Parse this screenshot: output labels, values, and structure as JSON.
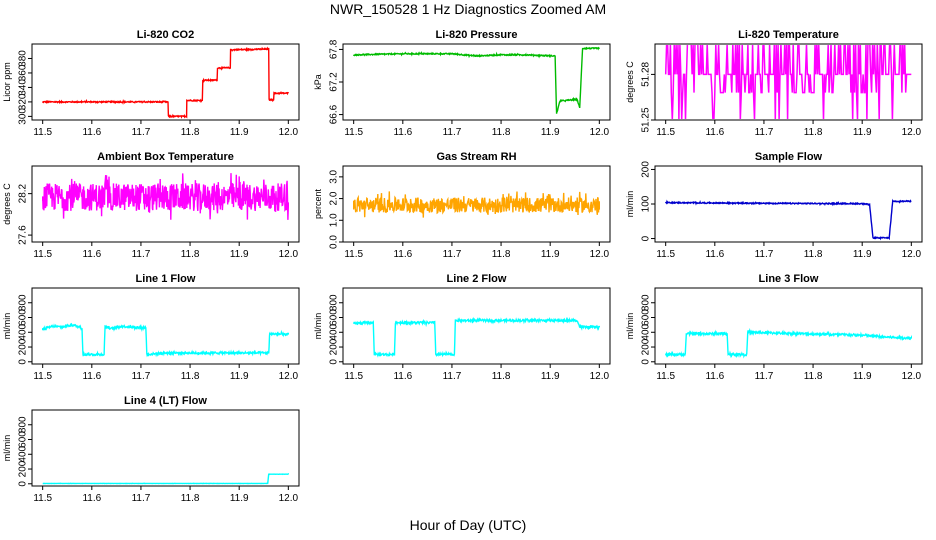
{
  "figure": {
    "title": "NWR_150528  1 Hz Diagnostics Zoomed AM",
    "xlabel": "Hour of Day (UTC)"
  },
  "chart_data": [
    {
      "type": "line",
      "title": "Li-820 CO2",
      "ylabel": "Licor ppm",
      "color": "#ff0000",
      "xlim": [
        11.5,
        12.0
      ],
      "ylim": [
        295,
        400
      ],
      "xticks": [
        "11.5",
        "11.6",
        "11.7",
        "11.8",
        "11.9",
        "12.0"
      ],
      "yticks": [
        300,
        320,
        340,
        360,
        380
      ],
      "noise": 0.8,
      "series": [
        {
          "x": [
            11.5,
            11.755,
            11.755,
            11.793,
            11.793,
            11.825,
            11.825,
            11.855,
            11.855,
            11.882,
            11.882,
            11.96,
            11.96,
            11.97,
            11.97,
            12.0
          ],
          "y": [
            320,
            320,
            300,
            300,
            322,
            322,
            350,
            350,
            367,
            367,
            392,
            393,
            323,
            323,
            332,
            332
          ]
        }
      ]
    },
    {
      "type": "line",
      "title": "Li-820 Pressure",
      "ylabel": "kPa",
      "color": "#00bb00",
      "xlim": [
        11.5,
        12.0
      ],
      "ylim": [
        66.5,
        67.9
      ],
      "xticks": [
        "11.5",
        "11.6",
        "11.7",
        "11.8",
        "11.9",
        "12.0"
      ],
      "yticks": [
        "66.6",
        "67.2",
        "67.8"
      ],
      "ytick_values": [
        66.6,
        67.2,
        67.8
      ],
      "noise": 0.01,
      "series": [
        {
          "x": [
            11.5,
            11.6,
            11.7,
            11.75,
            11.8,
            11.85,
            11.91,
            11.913,
            11.92,
            11.955,
            11.96,
            11.966,
            11.975,
            11.995,
            12.0
          ],
          "y": [
            67.7,
            67.72,
            67.72,
            67.68,
            67.7,
            67.7,
            67.68,
            66.62,
            66.85,
            66.88,
            66.72,
            67.82,
            67.82,
            67.82,
            67.82
          ]
        }
      ]
    },
    {
      "type": "line",
      "title": "Li-820 Temperature",
      "ylabel": "degrees C",
      "color": "#ff00ff",
      "xlim": [
        11.5,
        12.0
      ],
      "ylim": [
        51.25,
        51.3
      ],
      "xticks": [
        "11.5",
        "11.6",
        "11.7",
        "11.8",
        "11.9",
        "12.0"
      ],
      "yticks": [
        "51.25",
        "51.28"
      ],
      "ytick_values": [
        51.25,
        51.28
      ],
      "levels": [
        51.25,
        51.268,
        51.28,
        51.3
      ],
      "series": [
        {
          "x": [
            11.5,
            12.0
          ],
          "y": [
            51.28,
            51.28
          ]
        }
      ]
    },
    {
      "type": "line",
      "title": "Ambient Box Temperature",
      "ylabel": "degrees C",
      "color": "#ff00ff",
      "xlim": [
        11.5,
        12.0
      ],
      "ylim": [
        27.5,
        28.6
      ],
      "xticks": [
        "11.5",
        "11.6",
        "11.7",
        "11.8",
        "11.9",
        "12.0"
      ],
      "yticks": [
        "27.6",
        "28.2"
      ],
      "ytick_values": [
        27.6,
        28.2
      ],
      "noise": 0.2,
      "series": [
        {
          "x": [
            11.5,
            12.0
          ],
          "y": [
            28.15,
            28.15
          ]
        }
      ]
    },
    {
      "type": "line",
      "title": "Gas Stream RH",
      "ylabel": "percent",
      "color": "#ffa500",
      "xlim": [
        11.5,
        12.0
      ],
      "ylim": [
        0,
        3.5
      ],
      "xticks": [
        "11.5",
        "11.6",
        "11.7",
        "11.8",
        "11.9",
        "12.0"
      ],
      "yticks": [
        "0.0",
        "1.0",
        "2.0",
        "3.0"
      ],
      "ytick_values": [
        0,
        1,
        2,
        3
      ],
      "noise": 0.35,
      "series": [
        {
          "x": [
            11.5,
            12.0
          ],
          "y": [
            1.7,
            1.7
          ]
        }
      ]
    },
    {
      "type": "line",
      "title": "Sample Flow",
      "ylabel": "ml/min",
      "color": "#0000cc",
      "xlim": [
        11.5,
        12.0
      ],
      "ylim": [
        -10,
        210
      ],
      "xticks": [
        "11.5",
        "11.6",
        "11.7",
        "11.8",
        "11.9",
        "12.0"
      ],
      "yticks": [
        "0",
        "100",
        "200"
      ],
      "ytick_values": [
        0,
        100,
        200
      ],
      "noise": 1.5,
      "series": [
        {
          "x": [
            11.5,
            11.7,
            11.9,
            11.915,
            11.922,
            11.955,
            11.962,
            12.0
          ],
          "y": [
            104,
            102,
            101,
            98,
            2,
            2,
            108,
            108
          ]
        }
      ]
    },
    {
      "type": "line",
      "title": "Line 1 Flow",
      "ylabel": "ml/min",
      "color": "#00ffff",
      "xlim": [
        11.5,
        12.0
      ],
      "ylim": [
        -30,
        1000
      ],
      "xticks": [
        "11.5",
        "11.6",
        "11.7",
        "11.8",
        "11.9",
        "12.0"
      ],
      "yticks": [
        "0",
        "200",
        "400",
        "600",
        "800"
      ],
      "ytick_values": [
        0,
        200,
        400,
        600,
        800
      ],
      "noise": 15,
      "series": [
        {
          "x": [
            11.5,
            11.52,
            11.54,
            11.56,
            11.58,
            11.582,
            11.625,
            11.627,
            11.64,
            11.66,
            11.71,
            11.712,
            11.75,
            11.96,
            11.962,
            12.0
          ],
          "y": [
            440,
            480,
            470,
            500,
            460,
            100,
            100,
            480,
            450,
            480,
            460,
            100,
            120,
            120,
            380,
            370
          ]
        }
      ]
    },
    {
      "type": "line",
      "title": "Line 2 Flow",
      "ylabel": "ml/min",
      "color": "#00ffff",
      "xlim": [
        11.5,
        12.0
      ],
      "ylim": [
        -30,
        1000
      ],
      "xticks": [
        "11.5",
        "11.6",
        "11.7",
        "11.8",
        "11.9",
        "12.0"
      ],
      "yticks": [
        "0",
        "200",
        "400",
        "600",
        "800"
      ],
      "ytick_values": [
        0,
        200,
        400,
        600,
        800
      ],
      "noise": 15,
      "series": [
        {
          "x": [
            11.5,
            11.54,
            11.542,
            11.583,
            11.585,
            11.665,
            11.667,
            11.705,
            11.707,
            11.955,
            11.96,
            12.0
          ],
          "y": [
            520,
            530,
            100,
            100,
            530,
            530,
            100,
            100,
            560,
            560,
            470,
            470
          ]
        }
      ]
    },
    {
      "type": "line",
      "title": "Line 3 Flow",
      "ylabel": "ml/min",
      "color": "#00ffff",
      "xlim": [
        11.5,
        12.0
      ],
      "ylim": [
        -30,
        1000
      ],
      "xticks": [
        "11.5",
        "11.6",
        "11.7",
        "11.8",
        "11.9",
        "12.0"
      ],
      "yticks": [
        "0",
        "200",
        "400",
        "600",
        "800"
      ],
      "ytick_values": [
        0,
        200,
        400,
        600,
        800
      ],
      "noise": 15,
      "series": [
        {
          "x": [
            11.5,
            11.54,
            11.542,
            11.625,
            11.627,
            11.665,
            11.667,
            11.9,
            11.96,
            12.0
          ],
          "y": [
            100,
            100,
            380,
            380,
            100,
            100,
            400,
            360,
            330,
            320
          ]
        }
      ]
    },
    {
      "type": "line",
      "title": "Line 4 (LT) Flow",
      "ylabel": "ml/min",
      "color": "#00ffff",
      "xlim": [
        11.5,
        12.0
      ],
      "ylim": [
        -30,
        1000
      ],
      "xticks": [
        "11.5",
        "11.6",
        "11.7",
        "11.8",
        "11.9",
        "12.0"
      ],
      "yticks": [
        "0",
        "200",
        "400",
        "600",
        "800"
      ],
      "ytick_values": [
        0,
        200,
        400,
        600,
        800
      ],
      "noise": 1,
      "series": [
        {
          "x": [
            11.5,
            11.958,
            11.96,
            12.0
          ],
          "y": [
            5,
            5,
            130,
            130
          ]
        }
      ]
    }
  ]
}
